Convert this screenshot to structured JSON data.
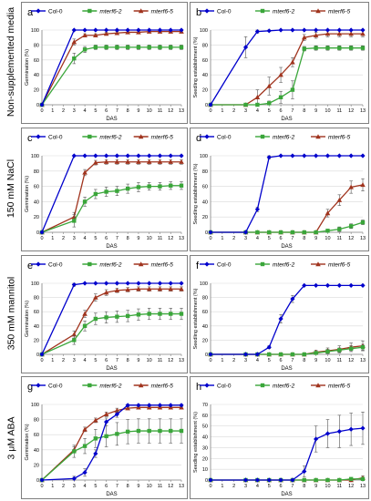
{
  "row_labels": [
    "Non-supplemented media",
    "150 mM NaCl",
    "350 mM mannitol",
    "3 μM ABA"
  ],
  "series_styles": [
    {
      "name": "Col-0",
      "color": "#0000cc",
      "marker": "diamond"
    },
    {
      "name": "mterf6-2",
      "color": "#3aa63a",
      "marker": "square"
    },
    {
      "name": "mterf6-5",
      "color": "#a0341e",
      "marker": "triangle"
    }
  ],
  "chart_data": [
    {
      "type": "line",
      "panel": "a",
      "xlabel": "DAS",
      "ylabel": "Germination (%)",
      "ylim": [
        0,
        100
      ],
      "y_ticks": [
        0,
        20,
        40,
        60,
        80,
        100
      ],
      "x": [
        0,
        3,
        4,
        5,
        6,
        7,
        8,
        9,
        10,
        11,
        12,
        13
      ],
      "legend": "top",
      "series": [
        {
          "name": "Col-0",
          "values": [
            0,
            100,
            100,
            100,
            100,
            100,
            100,
            100,
            100,
            100,
            100,
            100
          ],
          "err": [
            0,
            1,
            1,
            1,
            1,
            1,
            1,
            1,
            1,
            1,
            1,
            1
          ]
        },
        {
          "name": "mterf6-2",
          "values": [
            0,
            62,
            74,
            77,
            77,
            77,
            77,
            77,
            77,
            77,
            77,
            77
          ],
          "err": [
            0,
            7,
            4,
            3,
            3,
            3,
            3,
            3,
            3,
            3,
            3,
            3
          ]
        },
        {
          "name": "mterf6-5",
          "values": [
            0,
            84,
            93,
            93,
            95,
            96,
            97,
            97,
            98,
            98,
            98,
            98
          ],
          "err": [
            0,
            4,
            2,
            2,
            2,
            2,
            2,
            2,
            2,
            2,
            2,
            2
          ]
        }
      ]
    },
    {
      "type": "line",
      "panel": "b",
      "xlabel": "DAS",
      "ylabel": "Seedling establishment (%)",
      "ylim": [
        0,
        100
      ],
      "y_ticks": [
        0,
        20,
        40,
        60,
        80,
        100
      ],
      "x": [
        0,
        3,
        4,
        5,
        6,
        7,
        8,
        9,
        10,
        11,
        12,
        13
      ],
      "legend": "top",
      "series": [
        {
          "name": "Col-0",
          "values": [
            0,
            77,
            98,
            99,
            100,
            100,
            100,
            100,
            100,
            100,
            100,
            100
          ],
          "err": [
            0,
            14,
            2,
            1,
            0,
            0,
            0,
            0,
            0,
            0,
            0,
            0
          ]
        },
        {
          "name": "mterf6-2",
          "values": [
            0,
            0,
            0,
            2,
            10,
            20,
            75,
            76,
            76,
            76,
            76,
            76
          ],
          "err": [
            0,
            0,
            0,
            3,
            8,
            12,
            3,
            3,
            3,
            3,
            3,
            3
          ]
        },
        {
          "name": "mterf6-5",
          "values": [
            0,
            0,
            10,
            25,
            40,
            57,
            90,
            93,
            95,
            95,
            95,
            95
          ],
          "err": [
            0,
            0,
            10,
            12,
            10,
            6,
            4,
            4,
            4,
            4,
            4,
            4
          ]
        }
      ]
    },
    {
      "type": "line",
      "panel": "c",
      "xlabel": "DAS",
      "ylabel": "Germination (%)",
      "ylim": [
        0,
        100
      ],
      "y_ticks": [
        0,
        20,
        40,
        60,
        80,
        100
      ],
      "x": [
        0,
        3,
        4,
        5,
        6,
        7,
        8,
        9,
        10,
        11,
        12,
        13
      ],
      "legend": "top",
      "series": [
        {
          "name": "Col-0",
          "values": [
            0,
            100,
            100,
            100,
            100,
            100,
            100,
            100,
            100,
            100,
            100,
            100
          ],
          "err": [
            0,
            0,
            0,
            0,
            0,
            0,
            0,
            0,
            0,
            0,
            0,
            0
          ]
        },
        {
          "name": "mterf6-2",
          "values": [
            0,
            15,
            40,
            50,
            53,
            54,
            57,
            59,
            60,
            60,
            61,
            61
          ],
          "err": [
            0,
            8,
            6,
            6,
            6,
            6,
            6,
            6,
            5,
            5,
            5,
            5
          ]
        },
        {
          "name": "mterf6-5",
          "values": [
            0,
            20,
            78,
            91,
            92,
            92,
            92,
            92,
            92,
            92,
            92,
            92
          ],
          "err": [
            0,
            6,
            4,
            3,
            3,
            3,
            3,
            3,
            3,
            3,
            3,
            3
          ]
        }
      ]
    },
    {
      "type": "line",
      "panel": "d",
      "xlabel": "DAS",
      "ylabel": "Seedling establishment (%)",
      "ylim": [
        0,
        100
      ],
      "y_ticks": [
        0,
        20,
        40,
        60,
        80,
        100
      ],
      "x": [
        0,
        3,
        4,
        5,
        6,
        7,
        8,
        9,
        10,
        11,
        12,
        13
      ],
      "legend": "top",
      "series": [
        {
          "name": "Col-0",
          "values": [
            0,
            0,
            30,
            98,
            100,
            100,
            100,
            100,
            100,
            100,
            100,
            100
          ],
          "err": [
            0,
            0,
            3,
            2,
            0,
            0,
            0,
            0,
            0,
            0,
            0,
            0
          ]
        },
        {
          "name": "mterf6-2",
          "values": [
            0,
            0,
            0,
            0,
            0,
            0,
            0,
            0,
            2,
            4,
            8,
            13
          ],
          "err": [
            0,
            0,
            0,
            0,
            0,
            0,
            0,
            0,
            2,
            3,
            3,
            3
          ]
        },
        {
          "name": "mterf6-5",
          "values": [
            0,
            0,
            0,
            0,
            0,
            0,
            0,
            0,
            25,
            42,
            59,
            62
          ],
          "err": [
            0,
            0,
            0,
            0,
            0,
            0,
            0,
            0,
            5,
            7,
            8,
            8
          ]
        }
      ]
    },
    {
      "type": "line",
      "panel": "e",
      "xlabel": "DAS",
      "ylabel": "Germination (%)",
      "ylim": [
        0,
        100
      ],
      "y_ticks": [
        0,
        20,
        40,
        60,
        80,
        100
      ],
      "x": [
        0,
        3,
        4,
        5,
        6,
        7,
        8,
        9,
        10,
        11,
        12,
        13
      ],
      "legend": "top",
      "series": [
        {
          "name": "Col-0",
          "values": [
            0,
            98,
            100,
            100,
            100,
            100,
            100,
            100,
            100,
            100,
            100,
            100
          ],
          "err": [
            0,
            2,
            0,
            0,
            0,
            0,
            0,
            0,
            0,
            0,
            0,
            0
          ]
        },
        {
          "name": "mterf6-2",
          "values": [
            0,
            20,
            40,
            50,
            52,
            53,
            54,
            56,
            57,
            57,
            57,
            57
          ],
          "err": [
            0,
            6,
            7,
            8,
            8,
            8,
            8,
            8,
            8,
            8,
            8,
            8
          ]
        },
        {
          "name": "mterf6-5",
          "values": [
            0,
            28,
            57,
            80,
            87,
            90,
            91,
            92,
            92,
            92,
            92,
            92
          ],
          "err": [
            0,
            5,
            5,
            5,
            4,
            3,
            3,
            3,
            3,
            3,
            3,
            3
          ]
        }
      ]
    },
    {
      "type": "line",
      "panel": "f",
      "xlabel": "DAS",
      "ylabel": "Seedling establishment (%)",
      "ylim": [
        0,
        100
      ],
      "y_ticks": [
        0,
        20,
        40,
        60,
        80,
        100
      ],
      "x": [
        0,
        3,
        4,
        5,
        6,
        7,
        8,
        9,
        10,
        11,
        12,
        13
      ],
      "legend": "top",
      "series": [
        {
          "name": "Col-0",
          "values": [
            0,
            0,
            0,
            10,
            50,
            78,
            97,
            97,
            97,
            97,
            97,
            97
          ],
          "err": [
            0,
            0,
            0,
            2,
            6,
            5,
            0,
            0,
            0,
            0,
            0,
            0
          ]
        },
        {
          "name": "mterf6-2",
          "values": [
            0,
            0,
            0,
            0,
            0,
            0,
            0,
            2,
            4,
            6,
            8,
            10
          ],
          "err": [
            0,
            0,
            0,
            0,
            0,
            0,
            0,
            2,
            3,
            3,
            4,
            4
          ]
        },
        {
          "name": "mterf6-5",
          "values": [
            0,
            0,
            0,
            0,
            0,
            0,
            0,
            3,
            5,
            7,
            10,
            12
          ],
          "err": [
            0,
            0,
            0,
            0,
            0,
            0,
            0,
            3,
            4,
            5,
            6,
            7
          ]
        }
      ]
    },
    {
      "type": "line",
      "panel": "g",
      "xlabel": "DAS",
      "ylabel": "Germination (%)",
      "ylim": [
        0,
        100
      ],
      "y_ticks": [
        0,
        20,
        40,
        60,
        80,
        100
      ],
      "x": [
        0,
        3,
        4,
        5,
        6,
        7,
        8,
        9,
        10,
        11,
        12,
        13
      ],
      "legend": "top",
      "series": [
        {
          "name": "Col-0",
          "values": [
            0,
            2,
            10,
            35,
            77,
            87,
            99,
            99,
            99,
            99,
            99,
            99
          ],
          "err": [
            0,
            3,
            5,
            5,
            5,
            4,
            2,
            2,
            2,
            2,
            2,
            2
          ]
        },
        {
          "name": "mterf6-2",
          "values": [
            0,
            38,
            45,
            55,
            58,
            61,
            64,
            65,
            65,
            65,
            65,
            65
          ],
          "err": [
            0,
            8,
            10,
            12,
            14,
            15,
            16,
            16,
            16,
            16,
            16,
            16
          ]
        },
        {
          "name": "mterf6-5",
          "values": [
            0,
            40,
            67,
            79,
            87,
            92,
            95,
            96,
            96,
            96,
            96,
            96
          ],
          "err": [
            0,
            4,
            3,
            3,
            3,
            3,
            2,
            2,
            2,
            2,
            2,
            2
          ]
        }
      ]
    },
    {
      "type": "line",
      "panel": "h",
      "xlabel": "DAS",
      "ylabel": "Seedling establishment (%)",
      "ylim": [
        0,
        70
      ],
      "y_ticks": [
        0,
        10,
        20,
        30,
        40,
        50,
        60,
        70
      ],
      "x": [
        0,
        3,
        4,
        5,
        6,
        7,
        8,
        9,
        10,
        11,
        12,
        13
      ],
      "legend": "top",
      "series": [
        {
          "name": "Col-0",
          "values": [
            0,
            0,
            0,
            0,
            0,
            0,
            8,
            38,
            43,
            45,
            47,
            48
          ],
          "err": [
            0,
            0,
            0,
            0,
            0,
            0,
            5,
            12,
            13,
            15,
            15,
            15
          ]
        },
        {
          "name": "mterf6-2",
          "values": [
            0,
            0,
            0,
            0,
            0,
            0,
            0,
            0,
            0,
            0,
            1,
            1
          ],
          "err": [
            0,
            0,
            0,
            0,
            0,
            0,
            0,
            0,
            0,
            0,
            1,
            1
          ]
        },
        {
          "name": "mterf6-5",
          "values": [
            0,
            0,
            0,
            0,
            0,
            0,
            0,
            0,
            0,
            0,
            0,
            2
          ],
          "err": [
            0,
            0,
            0,
            0,
            0,
            0,
            0,
            0,
            0,
            0,
            0,
            2
          ]
        }
      ]
    }
  ]
}
